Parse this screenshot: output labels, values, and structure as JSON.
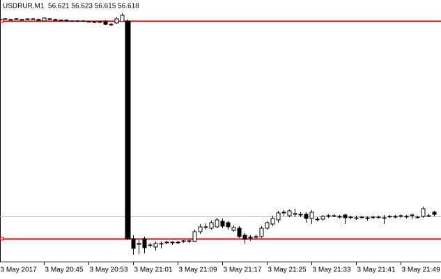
{
  "chart_data": {
    "type": "candlestick",
    "title": "USDRUR,M1  56.621 56.623 56.615 56.618",
    "categories": [
      "3 May 2017",
      null,
      null,
      null,
      null,
      null,
      null,
      null,
      "3 May 20:45",
      null,
      null,
      null,
      null,
      null,
      null,
      null,
      "3 May 20:53",
      null,
      null,
      null,
      null,
      null,
      null,
      null,
      "3 May 21:01",
      null,
      null,
      null,
      null,
      null,
      null,
      null,
      "3 May 21:09",
      null,
      null,
      null,
      null,
      null,
      null,
      null,
      "3 May 21:17",
      null,
      null,
      null,
      null,
      null,
      null,
      null,
      "3 May 21:25",
      null,
      null,
      null,
      null,
      null,
      null,
      null,
      "3 May 21:33",
      null,
      null,
      null,
      null,
      null,
      null,
      null,
      "3 May 21:41",
      null,
      null,
      null,
      null,
      null,
      null,
      null,
      "3 May 21:49",
      null,
      null,
      null,
      null,
      null,
      null
    ],
    "open": [
      56.898,
      56.899,
      56.898,
      56.899,
      56.898,
      56.898,
      56.899,
      56.898,
      56.896,
      56.899,
      56.898,
      56.897,
      56.897,
      56.896,
      56.896,
      56.896,
      56.895,
      56.895,
      56.894,
      56.895,
      56.891,
      56.893,
      56.895,
      56.896,
      56.583,
      56.576,
      56.583,
      56.574,
      56.571,
      56.576,
      56.577,
      56.578,
      56.577,
      56.579,
      56.58,
      56.579,
      56.593,
      56.6,
      56.598,
      56.6,
      56.608,
      56.606,
      56.595,
      56.598,
      56.588,
      56.585,
      56.585,
      56.586,
      56.598,
      56.604,
      56.61,
      56.62,
      56.616,
      56.619,
      56.618,
      56.618,
      56.612,
      56.611,
      56.611,
      56.616,
      56.616,
      56.615,
      56.617,
      56.614,
      56.613,
      56.614,
      56.613,
      56.614,
      56.614,
      56.613,
      56.615,
      56.614,
      56.616,
      56.615,
      56.616,
      56.614,
      56.615,
      56.616,
      56.621
    ],
    "high": [
      56.899,
      56.9,
      56.899,
      56.9,
      56.899,
      56.899,
      56.9,
      56.899,
      56.901,
      56.9,
      56.899,
      56.898,
      56.898,
      56.897,
      56.897,
      56.897,
      56.896,
      56.896,
      56.896,
      56.897,
      56.893,
      56.901,
      56.907,
      56.898,
      56.588,
      56.581,
      56.586,
      56.577,
      56.579,
      56.579,
      56.58,
      56.579,
      56.58,
      56.581,
      56.582,
      56.596,
      56.604,
      56.605,
      56.609,
      56.613,
      56.612,
      56.608,
      56.602,
      56.601,
      56.591,
      56.588,
      56.589,
      56.601,
      56.608,
      56.616,
      56.623,
      56.624,
      56.625,
      56.626,
      56.621,
      56.621,
      56.624,
      56.614,
      56.617,
      56.618,
      56.619,
      56.617,
      56.619,
      56.616,
      56.616,
      56.616,
      56.615,
      56.616,
      56.616,
      56.617,
      56.617,
      56.617,
      56.618,
      56.617,
      56.619,
      56.616,
      56.629,
      56.619,
      56.623
    ],
    "low": [
      56.897,
      56.898,
      56.897,
      56.898,
      56.897,
      56.897,
      56.898,
      56.897,
      56.895,
      56.897,
      56.896,
      56.896,
      56.895,
      56.895,
      56.894,
      56.895,
      56.894,
      56.893,
      56.893,
      56.89,
      56.889,
      56.892,
      56.894,
      56.581,
      56.56,
      56.561,
      56.562,
      56.57,
      56.566,
      56.569,
      56.575,
      56.574,
      56.575,
      56.577,
      56.577,
      56.578,
      56.59,
      56.596,
      56.596,
      56.598,
      56.598,
      56.596,
      56.593,
      56.584,
      56.576,
      56.58,
      56.583,
      56.584,
      56.596,
      56.601,
      56.606,
      56.616,
      56.614,
      56.614,
      56.614,
      56.606,
      56.604,
      56.608,
      56.609,
      56.613,
      56.614,
      56.612,
      56.604,
      56.611,
      56.61,
      56.612,
      56.609,
      56.611,
      56.612,
      56.604,
      56.613,
      56.612,
      56.613,
      56.612,
      56.611,
      56.612,
      56.613,
      56.614,
      56.615
    ],
    "close": [
      56.898,
      56.899,
      56.898,
      56.898,
      56.898,
      56.899,
      56.898,
      56.897,
      56.9,
      56.898,
      56.897,
      56.897,
      56.896,
      56.896,
      56.896,
      56.895,
      56.895,
      56.894,
      56.895,
      56.891,
      56.891,
      56.899,
      56.904,
      56.583,
      56.569,
      56.575,
      56.57,
      56.574,
      56.576,
      56.576,
      56.578,
      56.577,
      56.578,
      56.58,
      56.579,
      56.593,
      56.6,
      56.6,
      56.606,
      56.61,
      56.601,
      56.6,
      56.599,
      56.586,
      56.582,
      56.585,
      56.586,
      56.598,
      56.606,
      56.612,
      56.62,
      56.621,
      56.623,
      56.618,
      56.617,
      56.612,
      56.621,
      56.611,
      56.615,
      56.616,
      56.616,
      56.614,
      56.613,
      56.614,
      56.613,
      56.614,
      56.612,
      56.614,
      56.614,
      56.613,
      56.615,
      56.615,
      56.616,
      56.615,
      56.617,
      56.614,
      56.626,
      56.616,
      56.618
    ],
    "ylim": [
      56.55,
      56.926
    ],
    "up_color": "#ffffff",
    "down_color": "#000000",
    "wick_color": "#000000",
    "hlines": [
      {
        "value": 56.896,
        "color": "#d00000"
      },
      {
        "value": 56.583,
        "color": "#d00000"
      },
      {
        "value": 56.615,
        "color": "#c0c0c0"
      }
    ]
  }
}
